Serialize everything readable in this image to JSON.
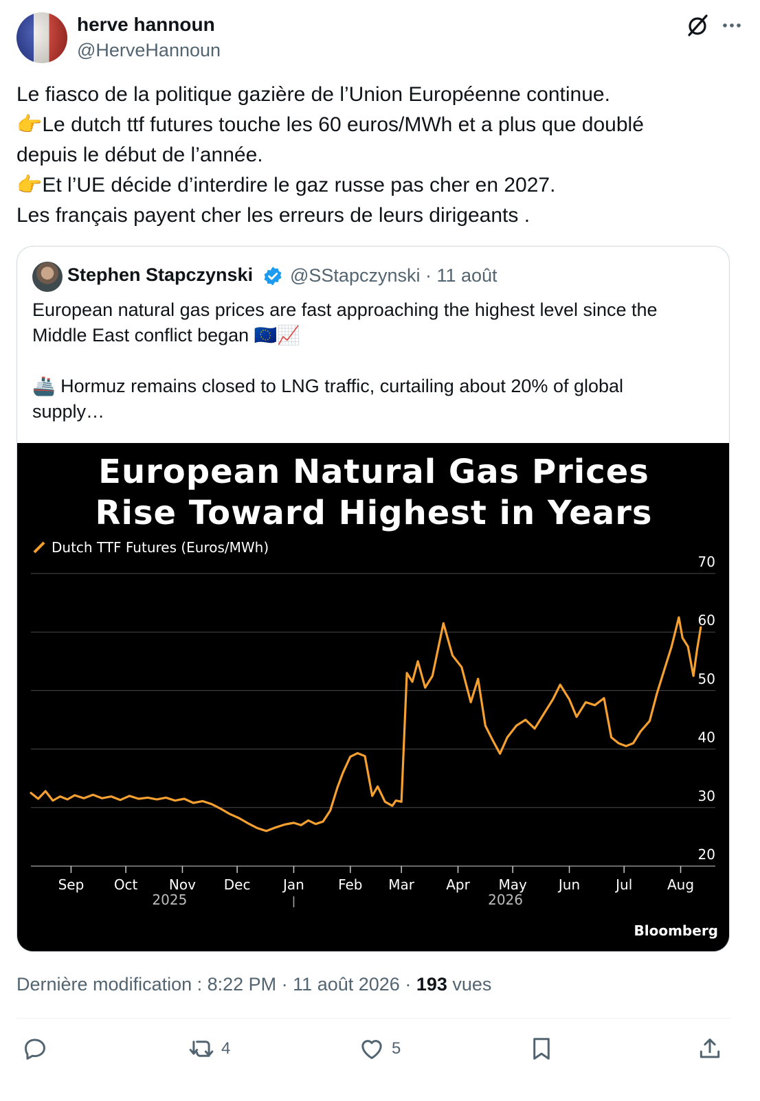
{
  "author": {
    "name": "herve hannoun",
    "handle": "@HerveHannoun"
  },
  "tweet": {
    "lines": [
      "Le fiasco de la politique gazière de l’Union Européenne continue.",
      "Le dutch ttf futures touche les 60 euros/MWh et a plus que doublé",
      "depuis le début de l’année.",
      "Et l’UE décide d’interdire le gaz russe pas cher en 2027.",
      "Les français payent  cher les erreurs de leurs dirigeants ."
    ],
    "emoji_pointing": "👉"
  },
  "quote": {
    "name": "Stephen Stapczynski",
    "handle_date": "@SStapczynski · 11 août",
    "lines": [
      "European natural gas prices are fast approaching the highest level since the",
      "Middle East conflict began 🇪🇺📈",
      "",
      "🚢 Hormuz remains closed to LNG traffic, curtailing about 20% of global",
      "supply…"
    ]
  },
  "chart_data": {
    "type": "line",
    "title_lines": [
      "European Natural Gas Prices",
      "Rise Toward Highest in Years"
    ],
    "legend": "Dutch TTF Futures (Euros/MWh)",
    "source": "Bloomberg",
    "ylim": [
      20,
      70
    ],
    "yticks": [
      "20",
      "30",
      "40",
      "50",
      "60",
      "70"
    ],
    "xticks": [
      "Sep",
      "Oct",
      "Nov",
      "Dec",
      "Jan",
      "Feb",
      "Mar",
      "Apr",
      "May",
      "Jun",
      "Jul",
      "Aug"
    ],
    "year_labels": [
      "2025",
      "2026"
    ],
    "line_color": "#f5a030",
    "xlim": [
      "2025-08-10",
      "2026-08-20"
    ],
    "series": [
      {
        "values": [
          [
            "2025-08-10",
            32.5
          ],
          [
            "2025-08-14",
            31.5
          ],
          [
            "2025-08-18",
            32.8
          ],
          [
            "2025-08-22",
            31.2
          ],
          [
            "2025-08-26",
            31.9
          ],
          [
            "2025-08-30",
            31.4
          ],
          [
            "2025-09-03",
            32.1
          ],
          [
            "2025-09-08",
            31.6
          ],
          [
            "2025-09-13",
            32.2
          ],
          [
            "2025-09-18",
            31.6
          ],
          [
            "2025-09-23",
            31.9
          ],
          [
            "2025-09-28",
            31.3
          ],
          [
            "2025-10-03",
            32.0
          ],
          [
            "2025-10-08",
            31.5
          ],
          [
            "2025-10-13",
            31.7
          ],
          [
            "2025-10-18",
            31.4
          ],
          [
            "2025-10-23",
            31.7
          ],
          [
            "2025-10-28",
            31.2
          ],
          [
            "2025-11-02",
            31.5
          ],
          [
            "2025-11-07",
            30.8
          ],
          [
            "2025-11-12",
            31.1
          ],
          [
            "2025-11-17",
            30.6
          ],
          [
            "2025-11-22",
            29.8
          ],
          [
            "2025-11-27",
            28.9
          ],
          [
            "2025-12-02",
            28.2
          ],
          [
            "2025-12-07",
            27.3
          ],
          [
            "2025-12-12",
            26.5
          ],
          [
            "2025-12-17",
            26.0
          ],
          [
            "2025-12-22",
            26.6
          ],
          [
            "2025-12-27",
            27.1
          ],
          [
            "2026-01-01",
            27.4
          ],
          [
            "2026-01-05",
            27.0
          ],
          [
            "2026-01-09",
            27.8
          ],
          [
            "2026-01-13",
            27.2
          ],
          [
            "2026-01-17",
            27.6
          ],
          [
            "2026-01-21",
            29.5
          ],
          [
            "2026-01-25",
            33.5
          ],
          [
            "2026-01-28",
            36.0
          ],
          [
            "2026-02-01",
            38.7
          ],
          [
            "2026-02-05",
            39.3
          ],
          [
            "2026-02-09",
            38.8
          ],
          [
            "2026-02-13",
            32.0
          ],
          [
            "2026-02-16",
            33.6
          ],
          [
            "2026-02-20",
            31.0
          ],
          [
            "2026-02-24",
            30.3
          ],
          [
            "2026-02-26",
            31.2
          ],
          [
            "2026-03-01",
            31.0
          ],
          [
            "2026-03-04",
            53.0
          ],
          [
            "2026-03-07",
            51.5
          ],
          [
            "2026-03-10",
            55.0
          ],
          [
            "2026-03-14",
            50.5
          ],
          [
            "2026-03-18",
            52.5
          ],
          [
            "2026-03-24",
            61.5
          ],
          [
            "2026-03-29",
            56.0
          ],
          [
            "2026-04-03",
            54.0
          ],
          [
            "2026-04-08",
            48.0
          ],
          [
            "2026-04-12",
            52.0
          ],
          [
            "2026-04-16",
            44.0
          ],
          [
            "2026-04-20",
            41.5
          ],
          [
            "2026-04-24",
            39.2
          ],
          [
            "2026-04-28",
            42.0
          ],
          [
            "2026-05-03",
            44.0
          ],
          [
            "2026-05-08",
            45.0
          ],
          [
            "2026-05-13",
            43.5
          ],
          [
            "2026-05-18",
            46.0
          ],
          [
            "2026-05-23",
            48.5
          ],
          [
            "2026-05-27",
            51.0
          ],
          [
            "2026-06-01",
            48.5
          ],
          [
            "2026-06-05",
            45.5
          ],
          [
            "2026-06-10",
            48.0
          ],
          [
            "2026-06-15",
            47.5
          ],
          [
            "2026-06-20",
            48.7
          ],
          [
            "2026-06-24",
            42.0
          ],
          [
            "2026-06-28",
            41.0
          ],
          [
            "2026-07-02",
            40.5
          ],
          [
            "2026-07-06",
            41.0
          ],
          [
            "2026-07-10",
            43.0
          ],
          [
            "2026-07-15",
            44.8
          ],
          [
            "2026-07-19",
            49.5
          ],
          [
            "2026-07-23",
            53.5
          ],
          [
            "2026-07-27",
            57.5
          ],
          [
            "2026-07-31",
            62.5
          ],
          [
            "2026-08-02",
            59.0
          ],
          [
            "2026-08-05",
            57.5
          ],
          [
            "2026-08-08",
            52.5
          ],
          [
            "2026-08-10",
            57.0
          ],
          [
            "2026-08-12",
            60.8
          ]
        ]
      }
    ]
  },
  "meta": {
    "edited": "Dernière modification : 8:22 PM · 11 août 2026 · ",
    "views_count": "193",
    "views_label": " vues"
  },
  "actions": {
    "reply_count": "",
    "retweet_count": "4",
    "like_count": "5"
  }
}
